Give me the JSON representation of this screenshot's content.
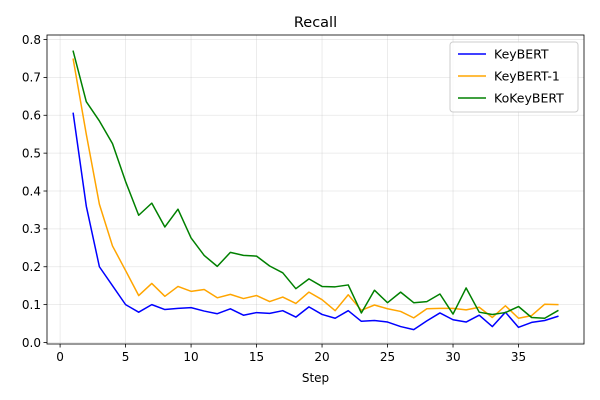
{
  "chart_data": {
    "type": "line",
    "title": "Recall",
    "xlabel": "Step",
    "ylabel": "",
    "xlim": [
      -1,
      40
    ],
    "ylim": [
      -0.004,
      0.812
    ],
    "xticks": [
      0,
      5,
      10,
      15,
      20,
      25,
      30,
      35
    ],
    "yticks": [
      0.0,
      0.1,
      0.2,
      0.3,
      0.4,
      0.5,
      0.6,
      0.7,
      0.8
    ],
    "xtick_labels": [
      "0",
      "5",
      "10",
      "15",
      "20",
      "25",
      "30",
      "35"
    ],
    "ytick_labels": [
      "0.0",
      "0.1",
      "0.2",
      "0.3",
      "0.4",
      "0.5",
      "0.6",
      "0.7",
      "0.8"
    ],
    "grid": true,
    "legend_position": "upper right",
    "x": [
      1,
      2,
      3,
      4,
      5,
      6,
      7,
      8,
      9,
      10,
      11,
      12,
      13,
      14,
      15,
      16,
      17,
      18,
      19,
      20,
      21,
      22,
      23,
      24,
      25,
      26,
      27,
      28,
      29,
      30,
      31,
      32,
      33,
      34,
      35,
      36,
      37,
      38
    ],
    "series": [
      {
        "name": "KeyBERT",
        "color": "#0000ff",
        "values": [
          0.605,
          0.36,
          0.2,
          0.15,
          0.1,
          0.08,
          0.1,
          0.087,
          0.09,
          0.092,
          0.083,
          0.076,
          0.089,
          0.072,
          0.079,
          0.077,
          0.084,
          0.067,
          0.094,
          0.074,
          0.064,
          0.084,
          0.056,
          0.058,
          0.054,
          0.042,
          0.034,
          0.057,
          0.078,
          0.06,
          0.054,
          0.072,
          0.042,
          0.08,
          0.04,
          0.053,
          0.058,
          0.069
        ]
      },
      {
        "name": "KeyBERT-1",
        "color": "#ffa500",
        "values": [
          0.748,
          0.55,
          0.365,
          0.255,
          0.19,
          0.124,
          0.156,
          0.122,
          0.148,
          0.135,
          0.14,
          0.118,
          0.127,
          0.116,
          0.124,
          0.108,
          0.12,
          0.103,
          0.133,
          0.113,
          0.084,
          0.126,
          0.085,
          0.099,
          0.089,
          0.082,
          0.065,
          0.089,
          0.09,
          0.09,
          0.086,
          0.093,
          0.066,
          0.097,
          0.064,
          0.071,
          0.101,
          0.1
        ]
      },
      {
        "name": "KoKeyBERT",
        "color": "#008000",
        "values": [
          0.769,
          0.636,
          0.585,
          0.525,
          0.425,
          0.336,
          0.368,
          0.305,
          0.352,
          0.276,
          0.23,
          0.201,
          0.238,
          0.23,
          0.228,
          0.202,
          0.184,
          0.142,
          0.168,
          0.148,
          0.147,
          0.152,
          0.078,
          0.138,
          0.105,
          0.133,
          0.105,
          0.108,
          0.128,
          0.075,
          0.144,
          0.08,
          0.074,
          0.079,
          0.095,
          0.066,
          0.064,
          0.084
        ]
      }
    ]
  }
}
